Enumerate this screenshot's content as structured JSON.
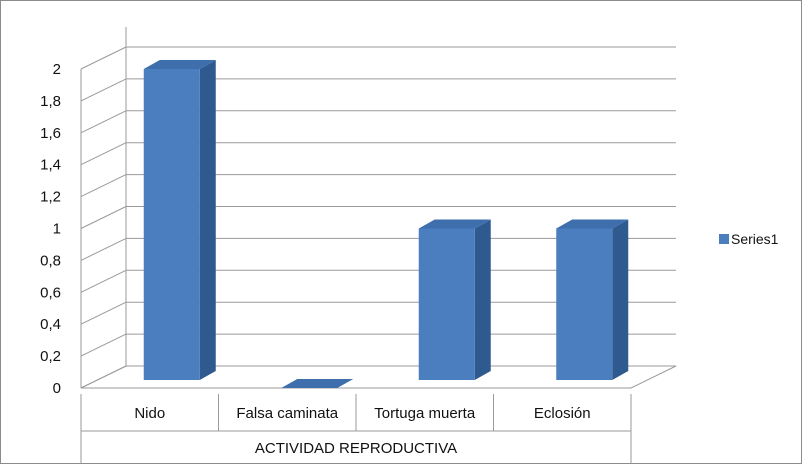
{
  "chart_data": {
    "type": "bar",
    "categories": [
      "Nido",
      "Falsa caminata",
      "Tortuga muerta",
      "Eclosión"
    ],
    "series": [
      {
        "name": "Series1",
        "values": [
          2,
          0,
          1,
          1
        ]
      }
    ],
    "group_label": "ACTIVIDAD REPRODUCTIVA",
    "ylim": [
      0,
      2
    ],
    "yticks": [
      "0",
      "0,2",
      "0,4",
      "0,6",
      "0,8",
      "1",
      "1,2",
      "1,4",
      "1,6",
      "1,8",
      "2"
    ],
    "grid": true,
    "legend": "right",
    "bar_colors": {
      "front": "#4a7ebf",
      "side": "#2f5a8f",
      "top": "#3e6fac"
    },
    "wall_color": "#9a9a9a"
  }
}
